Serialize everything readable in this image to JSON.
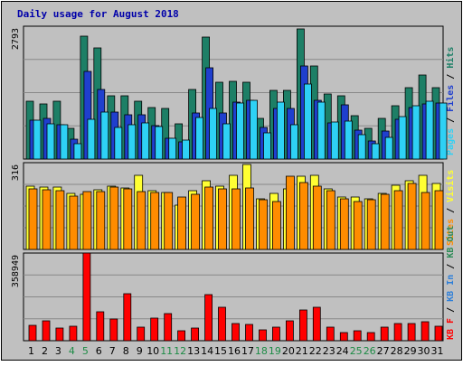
{
  "chart_data": {
    "type": "bar",
    "title": "Daily usage for August 2018",
    "categories": [
      "1",
      "2",
      "3",
      "4",
      "5",
      "6",
      "7",
      "8",
      "9",
      "10",
      "11",
      "12",
      "13",
      "14",
      "15",
      "16",
      "17",
      "18",
      "19",
      "20",
      "21",
      "22",
      "23",
      "24",
      "25",
      "26",
      "27",
      "28",
      "29",
      "30",
      "31"
    ],
    "weekend_days": [
      "4",
      "5",
      "11",
      "12",
      "18",
      "19",
      "25",
      "26"
    ],
    "colors": {
      "background": "#C0C0C0",
      "hits": "#1D7F66",
      "files": "#1F3FCE",
      "pages": "#2ED1F5",
      "visits": "#FFFF33",
      "sites": "#FF8C00",
      "kbf": "#FF0000",
      "kbin": "#2E7FD8",
      "kbout": "#2E8B57",
      "title": "#0000AA",
      "weekday": "#000000",
      "weekend": "#1E8C46"
    },
    "panels": [
      {
        "id": "top",
        "ymax_label": "2793",
        "ylim": [
          0,
          2793
        ],
        "side_labels": [
          {
            "text": "Pages",
            "color": "#2ED1F5"
          },
          {
            "text": "Files",
            "color": "#1F3FCE"
          },
          {
            "text": "Hits",
            "color": "#1D7F66"
          }
        ],
        "series": [
          {
            "name": "Hits",
            "color": "#1D7F66",
            "values": [
              1214,
              1150,
              1210,
              640,
              2580,
              2330,
              1335,
              1330,
              1220,
              1090,
              1070,
              740,
              1460,
              2560,
              1620,
              1640,
              1620,
              855,
              1450,
              1450,
              2730,
              1950,
              1360,
              1330,
              910,
              650,
              860,
              1130,
              1510,
              1765,
              1500
            ]
          },
          {
            "name": "Files",
            "color": "#1F3FCE",
            "values": [
              810,
              860,
              720,
              420,
              1840,
              1460,
              980,
              930,
              940,
              700,
              430,
              370,
              970,
              1920,
              960,
              1190,
              1230,
              660,
              1060,
              1070,
              1950,
              1230,
              760,
              1140,
              600,
              380,
              580,
              840,
              1080,
              1160,
              1180
            ]
          },
          {
            "name": "Pages",
            "color": "#2ED1F5",
            "values": [
              820,
              740,
              720,
              330,
              840,
              980,
              660,
              730,
              760,
              690,
              440,
              400,
              880,
              1070,
              740,
              1180,
              1230,
              560,
              1190,
              730,
              1570,
              1190,
              780,
              790,
              520,
              330,
              450,
              900,
              1120,
              1220,
              1170
            ]
          }
        ]
      },
      {
        "id": "middle",
        "ymax_label": "316",
        "ylim": [
          0,
          316
        ],
        "side_labels": [
          {
            "text": "Sites",
            "color": "#FF8C00"
          },
          {
            "text": "Visits",
            "color": "#FFFF33"
          }
        ],
        "series": [
          {
            "name": "Visits",
            "color": "#FFFF33",
            "values": [
              232,
              227,
              227,
              204,
              202,
              216,
              232,
              225,
              270,
              215,
              207,
              160,
              215,
              250,
              231,
              270,
              311,
              185,
              205,
              220,
              265,
              270,
              220,
              190,
              190,
              185,
              205,
              235,
              250,
              270,
              240
            ]
          },
          {
            "name": "Sites",
            "color": "#FF8C00",
            "values": [
              222,
              218,
              215,
              193,
              210,
              211,
              226,
              221,
              210,
              208,
              206,
              190,
              201,
              228,
              220,
              220,
              225,
              180,
              175,
              265,
              243,
              232,
              213,
              185,
              175,
              180,
              200,
              215,
              240,
              208,
              213
            ]
          }
        ]
      },
      {
        "id": "bottom",
        "ymax_label": "358949",
        "ylim": [
          0,
          358949
        ],
        "side_labels": [
          {
            "text": "KB F",
            "color": "#FF0000"
          },
          {
            "text": "KB In",
            "color": "#2E7FD8"
          },
          {
            "text": "KB Out",
            "color": "#2E8B57"
          }
        ],
        "series": [
          {
            "name": "KB F",
            "color": "#FF0000",
            "values": [
              62000,
              82000,
              52000,
              58000,
              358949,
              118000,
              87000,
              193000,
              57000,
              91000,
              112000,
              42000,
              52000,
              190000,
              138000,
              70000,
              68000,
              45000,
              57000,
              82000,
              125000,
              138000,
              57000,
              34000,
              41000,
              33000,
              55000,
              71000,
              71000,
              76000,
              59000
            ]
          }
        ]
      }
    ]
  }
}
